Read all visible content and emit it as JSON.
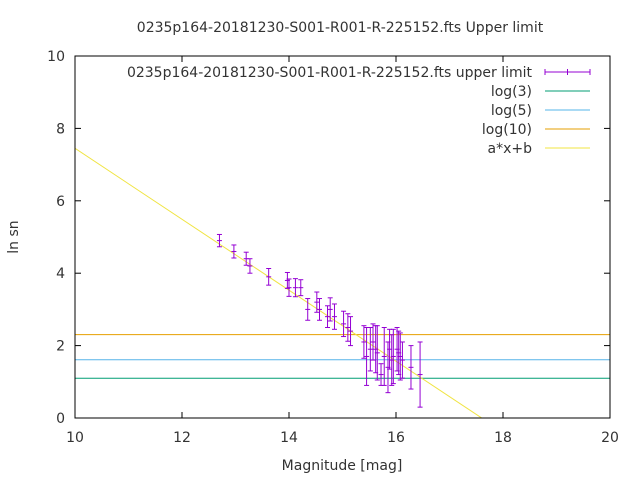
{
  "chart_data": {
    "type": "scatter",
    "title": "0235p164-20181230-S001-R001-R-225152.fts Upper limit",
    "xlabel": "Magnitude [mag]",
    "ylabel": "ln sn",
    "xlim": [
      10,
      20
    ],
    "ylim": [
      0,
      10
    ],
    "x_ticks": [
      10,
      12,
      14,
      16,
      18,
      20
    ],
    "y_ticks": [
      0,
      2,
      4,
      6,
      8,
      10
    ],
    "grid": false,
    "legend_position": "top-right",
    "series": [
      {
        "name": "0235p164-20181230-S001-R001-R-225152.fts upper limit",
        "kind": "errorbars",
        "color": "#9400d3",
        "points": [
          {
            "x": 12.7,
            "y": 4.9,
            "err": 0.17
          },
          {
            "x": 12.97,
            "y": 4.6,
            "err": 0.18
          },
          {
            "x": 13.2,
            "y": 4.4,
            "err": 0.18
          },
          {
            "x": 13.27,
            "y": 4.2,
            "err": 0.2
          },
          {
            "x": 13.62,
            "y": 3.9,
            "err": 0.23
          },
          {
            "x": 13.97,
            "y": 3.8,
            "err": 0.22
          },
          {
            "x": 14.0,
            "y": 3.6,
            "err": 0.24
          },
          {
            "x": 14.12,
            "y": 3.6,
            "err": 0.25
          },
          {
            "x": 14.22,
            "y": 3.6,
            "err": 0.22
          },
          {
            "x": 14.35,
            "y": 3.0,
            "err": 0.3
          },
          {
            "x": 14.52,
            "y": 3.2,
            "err": 0.28
          },
          {
            "x": 14.57,
            "y": 3.0,
            "err": 0.3
          },
          {
            "x": 14.72,
            "y": 2.8,
            "err": 0.3
          },
          {
            "x": 14.77,
            "y": 3.0,
            "err": 0.32
          },
          {
            "x": 14.85,
            "y": 2.8,
            "err": 0.35
          },
          {
            "x": 15.02,
            "y": 2.6,
            "err": 0.35
          },
          {
            "x": 15.1,
            "y": 2.5,
            "err": 0.38
          },
          {
            "x": 15.15,
            "y": 2.4,
            "err": 0.4
          },
          {
            "x": 15.4,
            "y": 2.1,
            "err": 0.45
          },
          {
            "x": 15.45,
            "y": 1.7,
            "err": 0.8
          },
          {
            "x": 15.52,
            "y": 1.9,
            "err": 0.6
          },
          {
            "x": 15.57,
            "y": 2.1,
            "err": 0.5
          },
          {
            "x": 15.62,
            "y": 1.9,
            "err": 0.65
          },
          {
            "x": 15.65,
            "y": 1.8,
            "err": 0.75
          },
          {
            "x": 15.72,
            "y": 1.2,
            "err": 0.3
          },
          {
            "x": 15.78,
            "y": 1.7,
            "err": 0.8
          },
          {
            "x": 15.85,
            "y": 1.4,
            "err": 0.7
          },
          {
            "x": 15.88,
            "y": 1.9,
            "err": 0.55
          },
          {
            "x": 15.92,
            "y": 1.6,
            "err": 0.7
          },
          {
            "x": 15.95,
            "y": 1.7,
            "err": 0.75
          },
          {
            "x": 16.02,
            "y": 1.9,
            "err": 0.6
          },
          {
            "x": 16.05,
            "y": 1.8,
            "err": 0.6
          },
          {
            "x": 16.08,
            "y": 1.7,
            "err": 0.65
          },
          {
            "x": 16.12,
            "y": 1.6,
            "err": 0.5
          },
          {
            "x": 16.28,
            "y": 1.4,
            "err": 0.6
          },
          {
            "x": 16.45,
            "y": 1.2,
            "err": 0.9
          }
        ]
      },
      {
        "name": "log(3)",
        "kind": "hline",
        "y": 1.0986,
        "color": "#009e73"
      },
      {
        "name": "log(5)",
        "kind": "hline",
        "y": 1.6094,
        "color": "#56b4e9"
      },
      {
        "name": "log(10)",
        "kind": "hline",
        "y": 2.3026,
        "color": "#e69f00"
      },
      {
        "name": "a*x+b",
        "kind": "fitline",
        "a": -0.98,
        "b": 17.25,
        "color": "#f0e442"
      }
    ]
  }
}
